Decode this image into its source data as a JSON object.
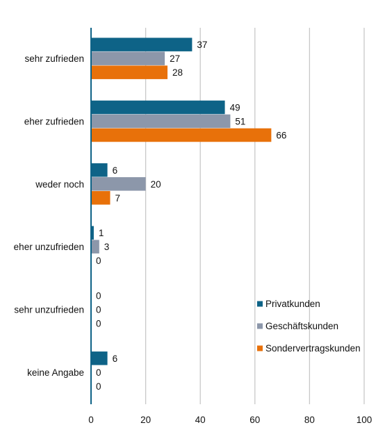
{
  "chart_data": {
    "type": "bar",
    "orientation": "horizontal",
    "categories": [
      "sehr zufrieden",
      "eher zufrieden",
      "weder noch",
      "eher unzufrieden",
      "sehr unzufrieden",
      "keine Angabe"
    ],
    "series": [
      {
        "name": "Privatkunden",
        "values": [
          37,
          49,
          6,
          1,
          0,
          6
        ],
        "color": "#0e6387"
      },
      {
        "name": "Geschäftskunden",
        "values": [
          27,
          51,
          20,
          3,
          0,
          0
        ],
        "color": "#8c97aa"
      },
      {
        "name": "Sondervertragskunden",
        "values": [
          28,
          66,
          7,
          0,
          0,
          0
        ],
        "color": "#e8710a"
      }
    ],
    "xlim": [
      0,
      100
    ],
    "xticks": [
      0,
      20,
      40,
      60,
      80,
      100
    ],
    "grid": true,
    "legend_position": "right",
    "axis_color": "#0e6387",
    "grid_color": "#c8c8c8"
  }
}
